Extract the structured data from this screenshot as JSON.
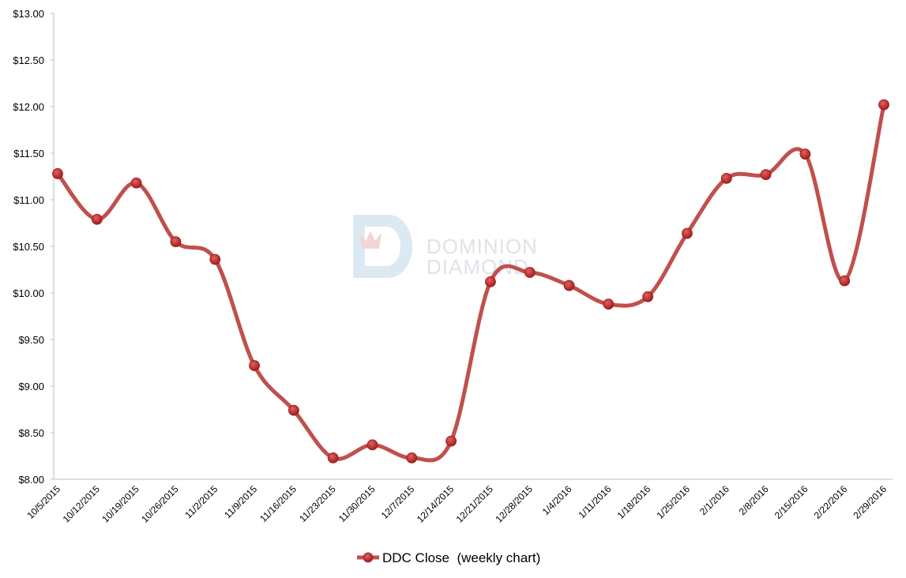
{
  "chart_data": {
    "type": "line",
    "watermark": [
      "DOMINION",
      "DIAMOND"
    ],
    "categories": [
      "10/5/2015",
      "10/12/2015",
      "10/19/2015",
      "10/26/2015",
      "11/2/2015",
      "11/9/2015",
      "11/16/2015",
      "11/23/2015",
      "11/30/2015",
      "12/7/2015",
      "12/14/2015",
      "12/21/2015",
      "12/28/2015",
      "1/4/2016",
      "1/11/2016",
      "1/18/2016",
      "1/25/2016",
      "2/1/2016",
      "2/8/2016",
      "2/15/2016",
      "2/22/2016",
      "2/29/2016"
    ],
    "series": [
      {
        "name": "DDC Close  (weekly chart)",
        "color": "#c0504d",
        "values": [
          11.28,
          10.79,
          11.18,
          10.55,
          10.36,
          9.22,
          8.74,
          8.23,
          8.37,
          8.23,
          8.41,
          10.12,
          10.22,
          10.08,
          9.88,
          9.96,
          10.64,
          11.23,
          11.27,
          11.49,
          10.13,
          12.02
        ]
      }
    ],
    "ylim": [
      8,
      13
    ],
    "yticks": [
      {
        "value": 8,
        "label": "$8.00"
      },
      {
        "value": 8.5,
        "label": "$8.50"
      },
      {
        "value": 9,
        "label": "$9.00"
      },
      {
        "value": 9.5,
        "label": "$9.50"
      },
      {
        "value": 10,
        "label": "$10.00"
      },
      {
        "value": 10.5,
        "label": "$10.50"
      },
      {
        "value": 11,
        "label": "$11.00"
      },
      {
        "value": 11.5,
        "label": "$11.50"
      },
      {
        "value": 12,
        "label": "$12.00"
      },
      {
        "value": 12.5,
        "label": "$12.50"
      },
      {
        "value": 13,
        "label": "$13.00"
      }
    ],
    "grid": false,
    "smooth": true,
    "legend": "bottom"
  }
}
